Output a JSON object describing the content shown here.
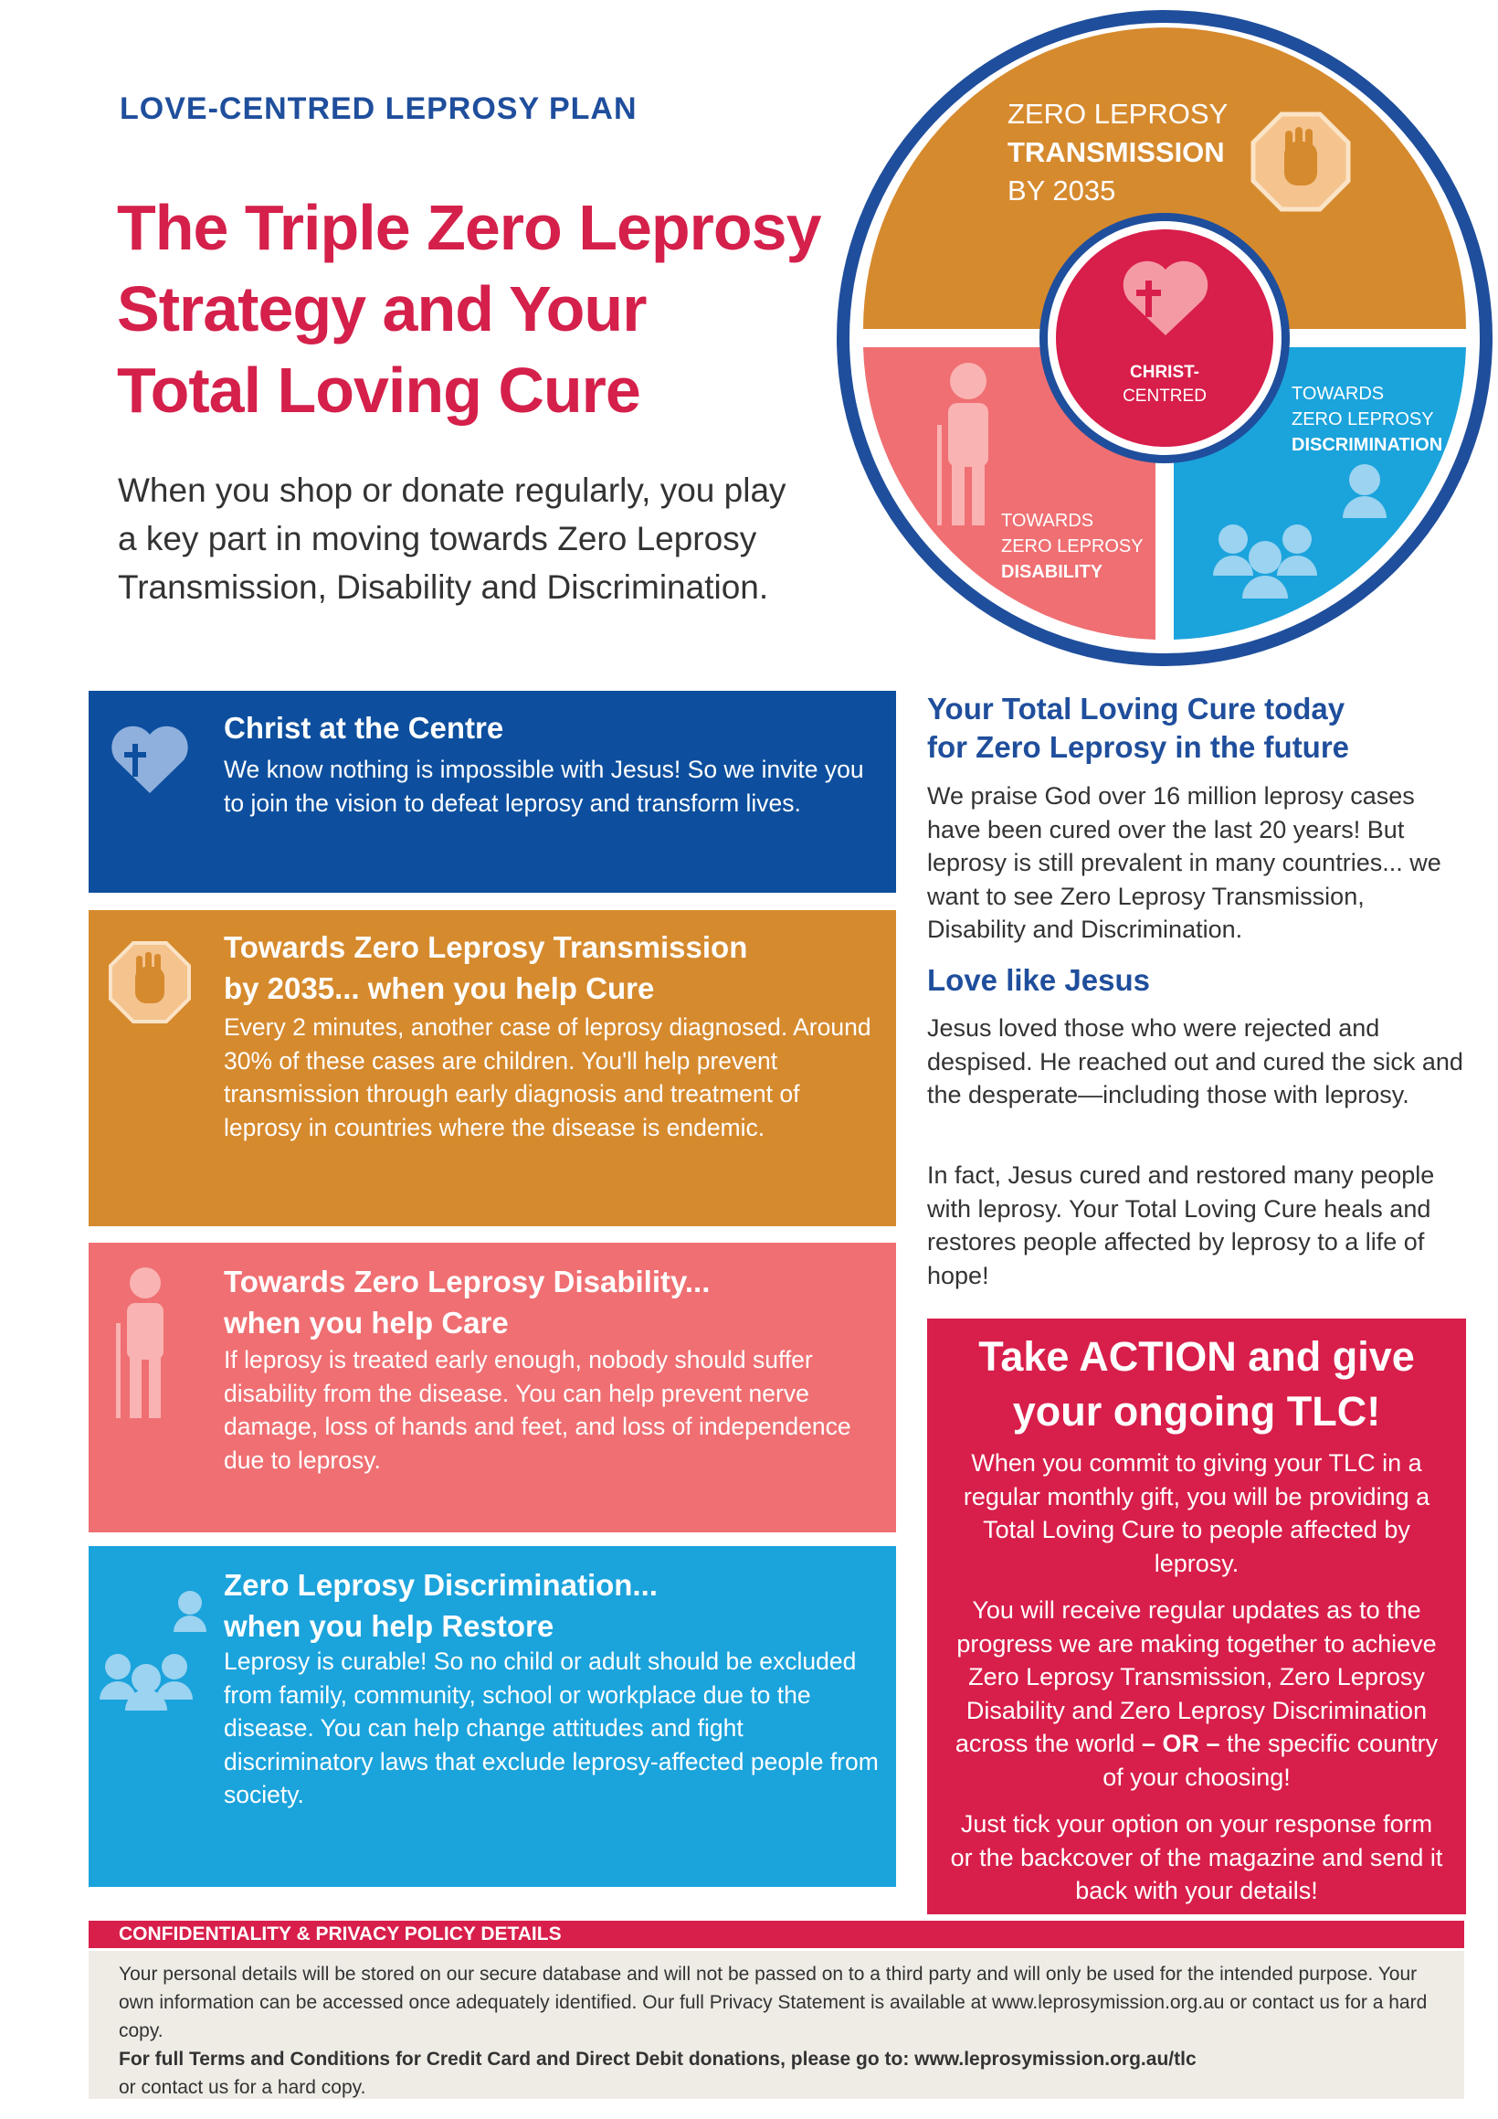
{
  "header": {
    "kicker": "LOVE-CENTRED LEPROSY PLAN",
    "title": [
      "The Triple Zero Leprosy",
      "Strategy and Your",
      "Total Loving Cure"
    ],
    "intro": [
      "When you shop or donate regularly, you play",
      "a key part in moving towards Zero Leprosy",
      "Transmission, Disability and Discrimination."
    ]
  },
  "diagram": {
    "transmission": [
      "ZERO LEPROSY",
      "TRANSMISSION",
      "BY 2035"
    ],
    "centre": [
      "CHRIST-",
      "CENTRED"
    ],
    "discrimination": [
      "TOWARDS",
      "ZERO LEPROSY",
      "DISCRIMINATION"
    ],
    "disability": [
      "TOWARDS",
      "ZERO LEPROSY",
      "DISABILITY"
    ]
  },
  "boxes": [
    {
      "heading": [
        "Christ at the Centre"
      ],
      "body": "We know nothing is impossible with Jesus! So we invite you to join the vision to defeat leprosy and transform lives."
    },
    {
      "heading": [
        "Towards Zero Leprosy Transmission",
        "by 2035... when you help Cure"
      ],
      "body": "Every 2 minutes, another case of leprosy diagnosed. Around 30% of these cases are children. You'll help prevent transmission through early diagnosis and treatment of leprosy in countries where the disease is endemic."
    },
    {
      "heading": [
        "Towards Zero Leprosy Disability...",
        "when you help Care"
      ],
      "body": "If leprosy is treated early enough, nobody should suffer disability from the disease. You can help prevent nerve damage, loss of hands and feet, and loss of independence due to leprosy."
    },
    {
      "heading": [
        "Zero Leprosy Discrimination...",
        "when you help Restore"
      ],
      "body": "Leprosy is curable! So no child or adult should be excluded from family, community, school or workplace due to the disease. You can help change attitudes and fight discriminatory laws that exclude leprosy-affected people from society."
    }
  ],
  "sidebar": {
    "heading": [
      "Your Total Loving Cure today",
      "for Zero Leprosy in the future"
    ],
    "paragraph1": "We praise God over 16 million leprosy cases have been cured over the last 20 years! But leprosy is still prevalent in many countries... we want to see Zero Leprosy Transmission, Disability and Discrimination.",
    "subheading": "Love like Jesus",
    "paragraph2": "Jesus loved those who were rejected and despised. He reached out and cured the sick and the desperate—including those with leprosy.",
    "paragraph3": "In fact, Jesus cured and restored many people with leprosy. Your Total Loving Cure heals and restores people affected by leprosy to a life of hope!"
  },
  "action": {
    "title": [
      "Take ACTION and give",
      "your ongoing TLC!"
    ],
    "paragraph1": "When you commit to giving your TLC in a regular monthly gift, you will be providing a Total Loving Cure to people affected by leprosy.",
    "paragraph2": [
      "You will receive regular updates as to the progress we are making together to achieve Zero Leprosy Transmission, Zero Leprosy Disability and Zero Leprosy Discrimination across the world ",
      "– OR –",
      " the specific country of your choosing!"
    ],
    "paragraph3": "Just tick your option on your response form or the backcover of the magazine and send it back with your details!"
  },
  "footer": {
    "heading": "CONFIDENTIALITY & PRIVACY POLICY DETAILS",
    "privacy": "Your personal details will be stored on our secure database and will not be passed on to a third party and will only be used for the intended purpose. Your own information can be accessed once adequately identified. Our full Privacy Statement is available at www.leprosymission.org.au or contact us for a hard copy.",
    "terms": "For full Terms and Conditions for Credit Card and Direct Debit donations, please go to: www.leprosymission.org.au/tlc",
    "contact": "or contact us for a hard copy."
  }
}
